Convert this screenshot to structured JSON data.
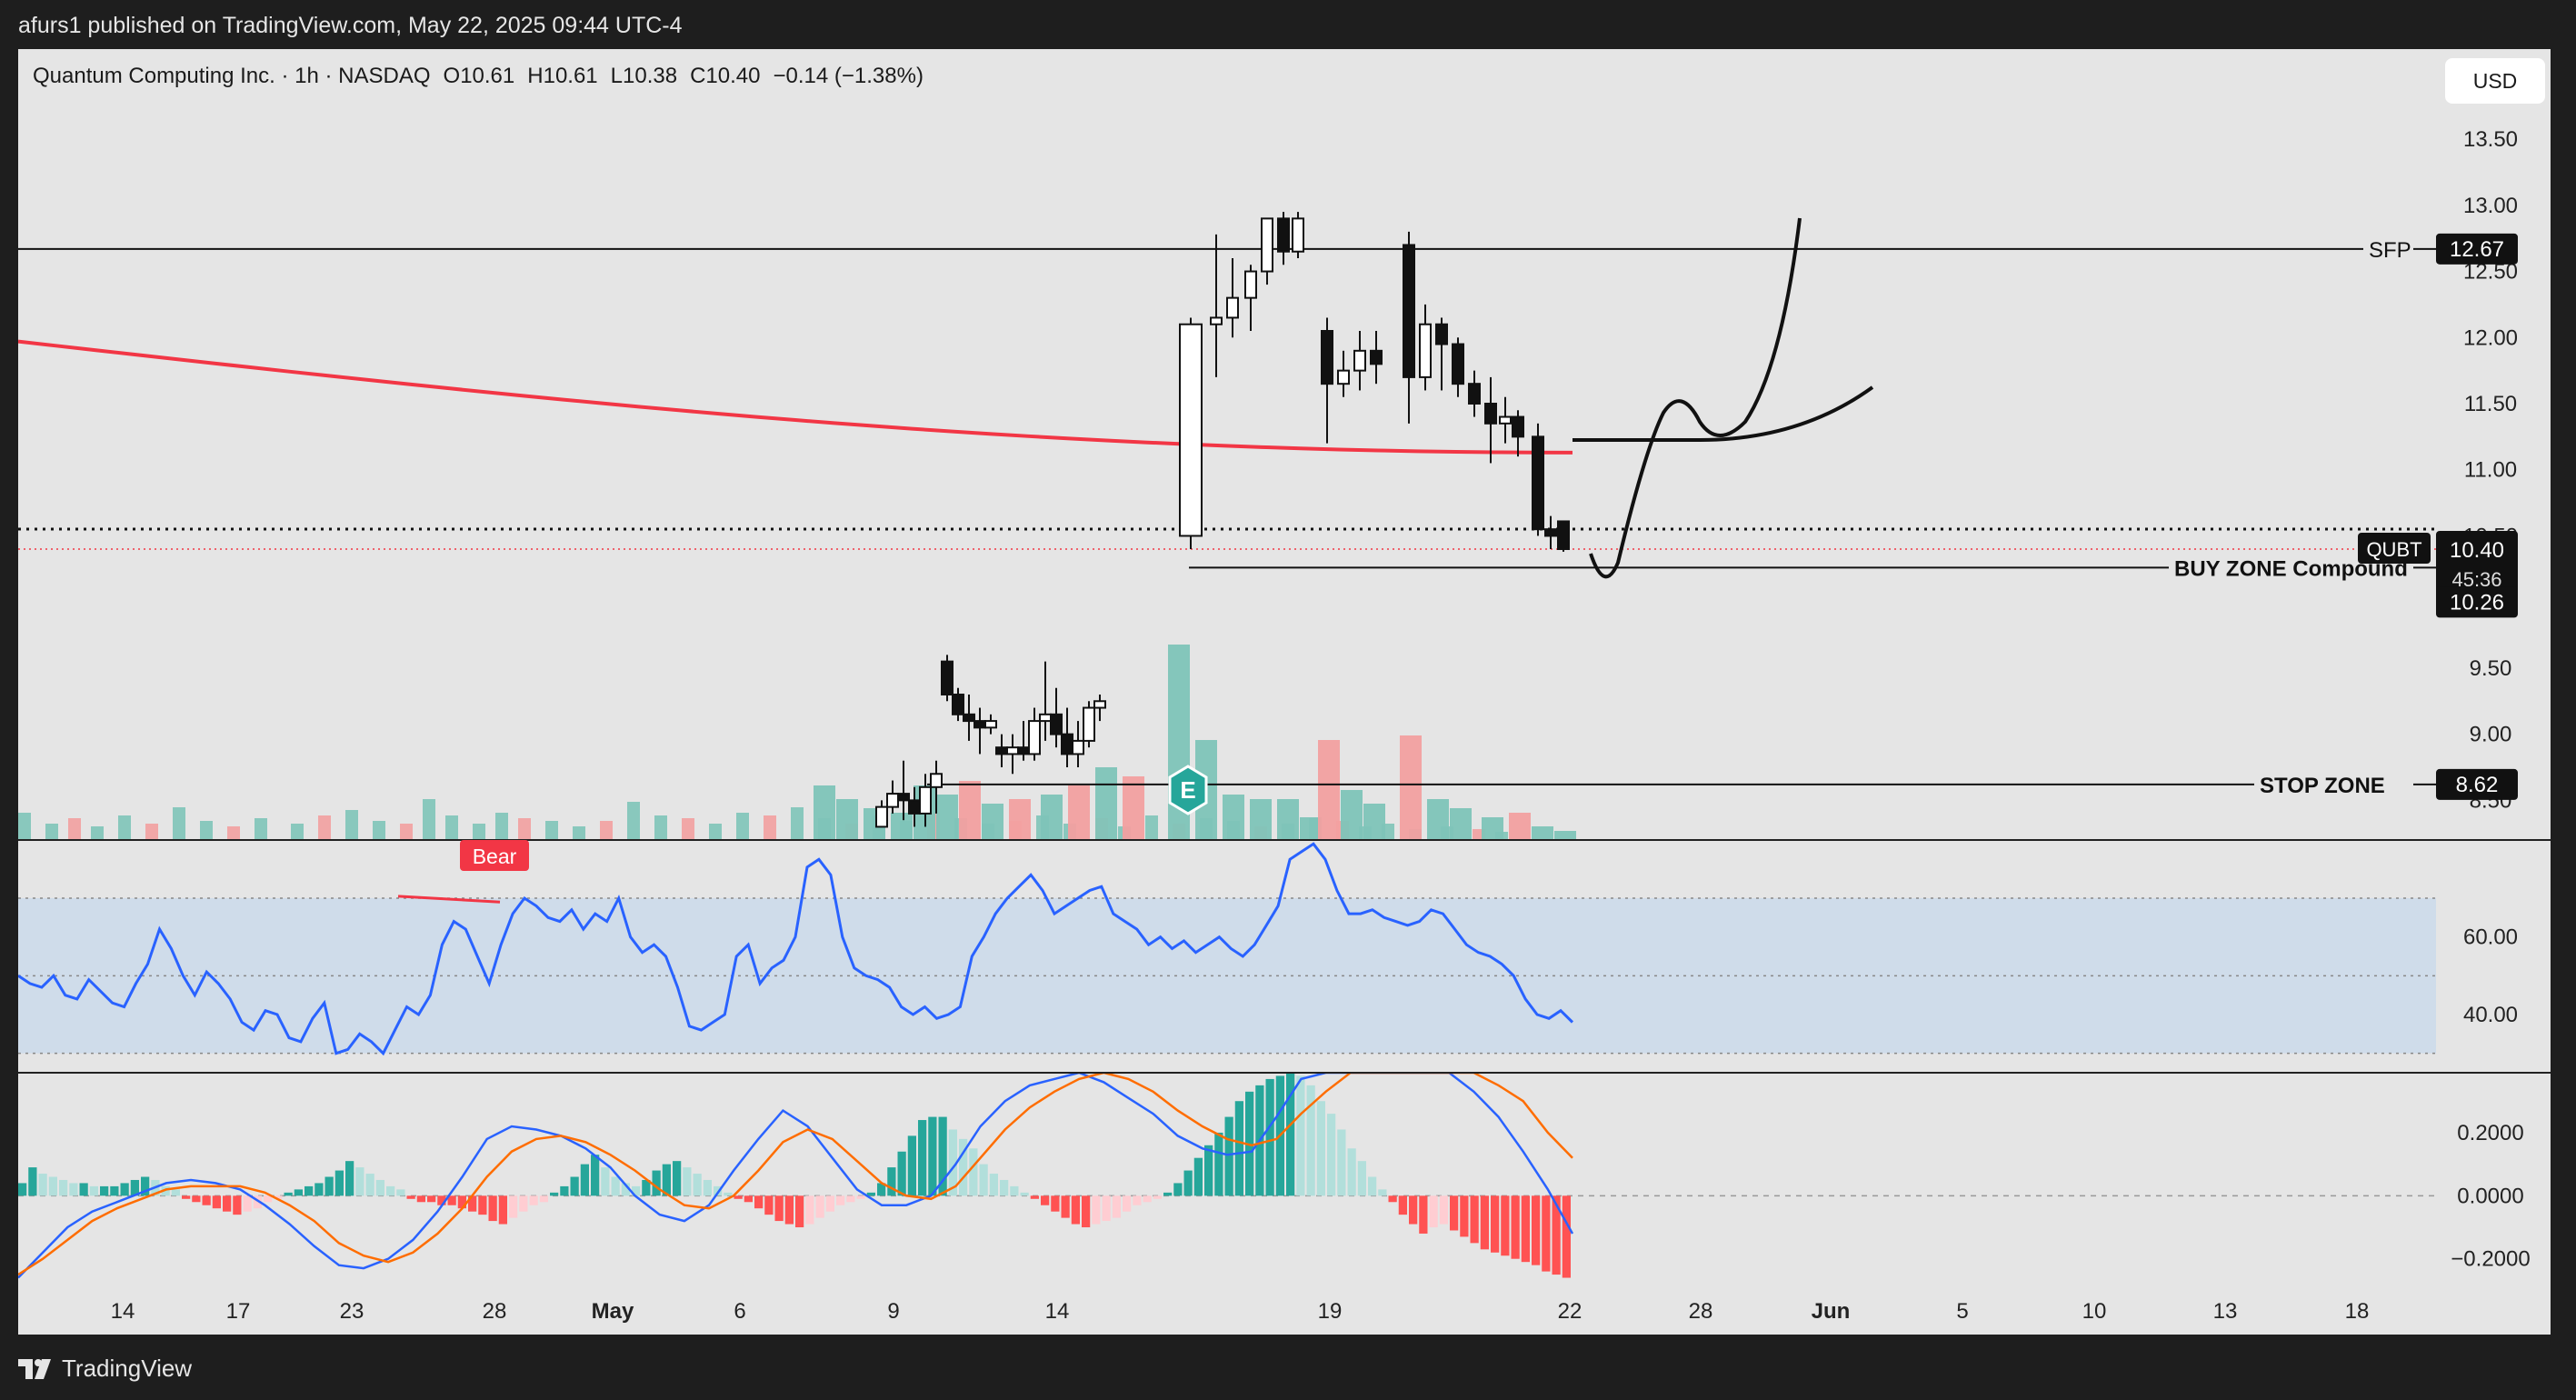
{
  "header": {
    "publisher": "afurs1 published on TradingView.com, May 22, 2025 09:44 UTC-4"
  },
  "legend": {
    "symbol_line": "Quantum Computing Inc. · 1h · NASDAQ",
    "open_label": "O",
    "open": "10.61",
    "high_label": "H",
    "high": "10.61",
    "low_label": "L",
    "low": "10.38",
    "close_label": "C",
    "close": "10.40",
    "change": "−0.14 (−1.38%)"
  },
  "currency": "USD",
  "footer": {
    "brand": "TradingView",
    "logo_icon": "tradingview-logo-icon"
  },
  "colors": {
    "bull_volume": "#7ec4b8",
    "bear_volume": "#f2a0a0",
    "ma_line": "#f23645",
    "rsi_line": "#2962ff",
    "rsi_band": "#cfdcea",
    "macd_line": "#2962ff",
    "signal_line": "#ff6d00",
    "hist_pos_strong": "#26a69a",
    "hist_pos_weak": "#b2dfdb",
    "hist_neg_strong": "#ff5252",
    "hist_neg_weak": "#ffcdd2"
  },
  "chart_data": [
    {
      "type": "candlestick",
      "title": "Quantum Computing Inc. · 1h · NASDAQ",
      "x_tick_labels": [
        "14",
        "17",
        "23",
        "28",
        "May",
        "6",
        "9",
        "14",
        "19",
        "22",
        "28",
        "Jun",
        "5",
        "10",
        "13",
        "18"
      ],
      "y_tick_labels": [
        "8.50",
        "9.00",
        "9.50",
        "10.00",
        "10.50",
        "11.00",
        "11.50",
        "12.00",
        "12.50",
        "13.00",
        "13.50"
      ],
      "ylim": [
        8.2,
        13.7
      ],
      "candles_visible_from": "May 9",
      "candles": [
        [
          8.3,
          8.5,
          8.3,
          8.45
        ],
        [
          8.45,
          8.65,
          8.4,
          8.55
        ],
        [
          8.55,
          8.8,
          8.35,
          8.5
        ],
        [
          8.5,
          8.6,
          8.3,
          8.4
        ],
        [
          8.4,
          8.7,
          8.3,
          8.6
        ],
        [
          8.6,
          8.8,
          8.4,
          8.7
        ],
        [
          9.55,
          9.6,
          9.25,
          9.3
        ],
        [
          9.3,
          9.35,
          9.1,
          9.15
        ],
        [
          9.15,
          9.3,
          8.95,
          9.1
        ],
        [
          9.1,
          9.2,
          8.85,
          9.05
        ],
        [
          9.05,
          9.15,
          9.0,
          9.1
        ],
        [
          8.9,
          9.0,
          8.75,
          8.85
        ],
        [
          8.85,
          9.0,
          8.7,
          8.9
        ],
        [
          8.9,
          9.1,
          8.8,
          8.85
        ],
        [
          8.85,
          9.2,
          8.8,
          9.1
        ],
        [
          9.1,
          9.55,
          8.95,
          9.15
        ],
        [
          9.15,
          9.35,
          8.9,
          9.0
        ],
        [
          9.0,
          9.2,
          8.75,
          8.85
        ],
        [
          8.85,
          9.1,
          8.75,
          8.95
        ],
        [
          8.95,
          9.25,
          8.9,
          9.2
        ],
        [
          9.2,
          9.3,
          9.1,
          9.25
        ],
        [
          10.5,
          12.15,
          10.4,
          12.1
        ],
        [
          12.1,
          12.78,
          11.7,
          12.15
        ],
        [
          12.15,
          12.6,
          12.0,
          12.3
        ],
        [
          12.3,
          12.55,
          12.05,
          12.5
        ],
        [
          12.5,
          12.9,
          12.4,
          12.9
        ],
        [
          12.9,
          12.95,
          12.55,
          12.65
        ],
        [
          12.65,
          12.95,
          12.6,
          12.9
        ],
        [
          12.05,
          12.15,
          11.2,
          11.65
        ],
        [
          11.65,
          11.9,
          11.55,
          11.75
        ],
        [
          11.75,
          12.05,
          11.6,
          11.9
        ],
        [
          11.9,
          12.05,
          11.65,
          11.8
        ],
        [
          12.7,
          12.8,
          11.35,
          11.7
        ],
        [
          11.7,
          12.25,
          11.6,
          12.1
        ],
        [
          12.1,
          12.15,
          11.6,
          11.95
        ],
        [
          11.95,
          12.0,
          11.55,
          11.65
        ],
        [
          11.65,
          11.75,
          11.4,
          11.5
        ],
        [
          11.5,
          11.7,
          11.05,
          11.35
        ],
        [
          11.35,
          11.55,
          11.2,
          11.4
        ],
        [
          11.4,
          11.45,
          11.1,
          11.25
        ],
        [
          11.25,
          11.35,
          10.5,
          10.55
        ],
        [
          10.55,
          10.65,
          10.4,
          10.5
        ],
        [
          10.61,
          10.61,
          10.38,
          10.4
        ]
      ],
      "moving_average": {
        "start": 11.97,
        "end": 11.13
      },
      "volume_colors_sample": "teal = up, pink = down",
      "horizontal_levels": [
        {
          "label": "SFP",
          "value": 12.67
        },
        {
          "label": "BUY ZONE Compound",
          "value": 10.26
        },
        {
          "label": "STOP ZONE",
          "value": 8.62
        }
      ],
      "last_price": {
        "symbol": "QUBT",
        "value": "10.40",
        "countdown": "45:36"
      },
      "level_badges": [
        "12.67",
        "10.40",
        "10.26",
        "8.62"
      ],
      "event_marker": "E"
    },
    {
      "type": "line",
      "panel": "RSI",
      "y_tick_labels": [
        "40.00",
        "60.00"
      ],
      "ylim": [
        25,
        85
      ],
      "band": [
        30,
        70
      ],
      "midline": 50,
      "annotation": "Bear",
      "values": [
        50,
        48,
        47,
        50,
        45,
        44,
        49,
        46,
        43,
        42,
        48,
        53,
        62,
        57,
        50,
        45,
        51,
        48,
        44,
        38,
        36,
        41,
        40,
        34,
        33,
        39,
        43,
        30,
        31,
        35,
        33,
        30,
        36,
        42,
        40,
        45,
        58,
        64,
        62,
        55,
        48,
        58,
        66,
        70,
        68,
        65,
        64,
        67,
        62,
        66,
        64,
        70,
        60,
        56,
        58,
        55,
        47,
        37,
        36,
        38,
        40,
        55,
        58,
        48,
        52,
        54,
        60,
        78,
        80,
        76,
        60,
        52,
        50,
        49,
        47,
        42,
        40,
        42,
        39,
        40,
        42,
        55,
        60,
        66,
        70,
        73,
        76,
        72,
        66,
        68,
        70,
        72,
        73,
        66,
        64,
        62,
        58,
        60,
        57,
        59,
        56,
        58,
        60,
        57,
        55,
        58,
        63,
        68,
        80,
        82,
        84,
        80,
        72,
        66,
        66,
        67,
        65,
        64,
        63,
        64,
        67,
        66,
        62,
        58,
        56,
        55,
        53,
        50,
        44,
        40,
        39,
        41,
        38
      ]
    },
    {
      "type": "line",
      "panel": "MACD",
      "y_tick_labels": [
        "0.2000",
        "0.0000",
        "−0.2000"
      ],
      "ylim": [
        -0.27,
        0.39
      ],
      "zero_line": 0,
      "series": [
        {
          "values": [
            -0.26,
            -0.18,
            -0.1,
            -0.05,
            -0.02,
            0.01,
            0.04,
            0.05,
            0.04,
            0.02,
            -0.03,
            -0.09,
            -0.16,
            -0.22,
            -0.23,
            -0.2,
            -0.14,
            -0.05,
            0.06,
            0.18,
            0.22,
            0.21,
            0.19,
            0.15,
            0.09,
            0.0,
            -0.06,
            -0.08,
            -0.03,
            0.08,
            0.18,
            0.27,
            0.22,
            0.12,
            0.02,
            -0.03,
            -0.03,
            0.0,
            0.1,
            0.22,
            0.3,
            0.35,
            0.37,
            0.39,
            0.36,
            0.31,
            0.26,
            0.19,
            0.15,
            0.13,
            0.14,
            0.25,
            0.37,
            0.39,
            0.39,
            0.39,
            0.39,
            0.39,
            0.39,
            0.33,
            0.25,
            0.14,
            0.02,
            -0.12
          ]
        },
        {
          "values": [
            -0.25,
            -0.2,
            -0.14,
            -0.08,
            -0.04,
            -0.01,
            0.02,
            0.03,
            0.03,
            0.03,
            0.01,
            -0.03,
            -0.08,
            -0.15,
            -0.19,
            -0.21,
            -0.18,
            -0.12,
            -0.04,
            0.06,
            0.14,
            0.18,
            0.19,
            0.17,
            0.13,
            0.08,
            0.02,
            -0.03,
            -0.04,
            0.0,
            0.08,
            0.17,
            0.21,
            0.18,
            0.11,
            0.04,
            0.0,
            -0.01,
            0.03,
            0.12,
            0.21,
            0.28,
            0.33,
            0.37,
            0.39,
            0.37,
            0.33,
            0.27,
            0.22,
            0.18,
            0.16,
            0.18,
            0.26,
            0.33,
            0.39,
            0.39,
            0.39,
            0.39,
            0.39,
            0.39,
            0.35,
            0.3,
            0.2,
            0.12
          ]
        }
      ],
      "histogram": [
        0.04,
        0.09,
        0.07,
        0.06,
        0.05,
        0.04,
        0.04,
        0.03,
        0.03,
        0.03,
        0.04,
        0.05,
        0.06,
        0.05,
        0.03,
        0.02,
        -0.01,
        -0.02,
        -0.03,
        -0.04,
        -0.05,
        -0.06,
        -0.05,
        -0.04,
        -0.02,
        -0.01,
        0.01,
        0.02,
        0.03,
        0.04,
        0.06,
        0.08,
        0.11,
        0.09,
        0.07,
        0.05,
        0.03,
        0.02,
        -0.01,
        -0.02,
        -0.02,
        -0.03,
        -0.03,
        -0.04,
        -0.05,
        -0.06,
        -0.08,
        -0.09,
        -0.07,
        -0.05,
        -0.03,
        -0.02,
        0.01,
        0.03,
        0.06,
        0.1,
        0.13,
        0.09,
        0.06,
        0.04,
        0.03,
        0.05,
        0.08,
        0.1,
        0.11,
        0.09,
        0.07,
        0.05,
        0.03,
        0.01,
        -0.01,
        -0.02,
        -0.04,
        -0.06,
        -0.08,
        -0.09,
        -0.1,
        -0.09,
        -0.07,
        -0.05,
        -0.03,
        -0.02,
        -0.01,
        0.01,
        0.04,
        0.09,
        0.14,
        0.19,
        0.24,
        0.25,
        0.25,
        0.21,
        0.18,
        0.15,
        0.1,
        0.07,
        0.05,
        0.03,
        0.01,
        -0.01,
        -0.03,
        -0.05,
        -0.07,
        -0.09,
        -0.1,
        -0.09,
        -0.08,
        -0.07,
        -0.05,
        -0.03,
        -0.02,
        -0.01,
        0.01,
        0.04,
        0.08,
        0.12,
        0.16,
        0.2,
        0.25,
        0.3,
        0.33,
        0.35,
        0.37,
        0.38,
        0.39,
        0.38,
        0.35,
        0.3,
        0.26,
        0.21,
        0.15,
        0.11,
        0.06,
        0.02,
        -0.02,
        -0.06,
        -0.09,
        -0.12,
        -0.1,
        -0.09,
        -0.11,
        -0.13,
        -0.15,
        -0.17,
        -0.18,
        -0.19,
        -0.2,
        -0.21,
        -0.22,
        -0.24,
        -0.25,
        -0.26
      ]
    }
  ]
}
